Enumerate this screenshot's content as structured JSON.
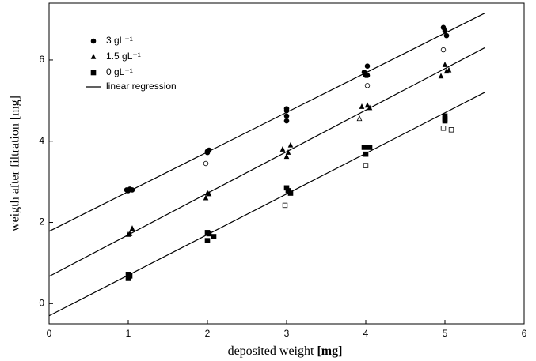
{
  "chart_data": {
    "type": "scatter",
    "xlabel": [
      "deposited weight",
      "[mg]"
    ],
    "ylabel": "weigth after filtration [mg]",
    "xlim": [
      0,
      6
    ],
    "xticks": [
      0,
      1,
      2,
      3,
      4,
      5,
      6
    ],
    "ylim": [
      -0.5,
      7.4
    ],
    "yticks": [
      0,
      2,
      4,
      6
    ],
    "color": "#000000",
    "series": [
      {
        "name": "3 gL⁻¹",
        "marker": "circle",
        "x": [
          0.98,
          1,
          1.02,
          1.05,
          2,
          2,
          2.02,
          3,
          3,
          3,
          3,
          3.98,
          4,
          4.02,
          4.02,
          4.98,
          5,
          5.02
        ],
        "values": [
          2.8,
          2.78,
          2.82,
          2.8,
          3.75,
          3.72,
          3.78,
          4.8,
          4.75,
          4.62,
          4.5,
          5.7,
          5.62,
          5.85,
          5.62,
          6.8,
          6.72,
          6.6
        ],
        "open_x": [
          1.98,
          4.02,
          4.98
        ],
        "open_values": [
          3.45,
          5.37,
          6.25
        ]
      },
      {
        "name": "1.5 gL⁻¹",
        "marker": "triangle",
        "x": [
          1,
          1.02,
          1.05,
          1.98,
          2,
          2.02,
          2.95,
          3,
          3.02,
          3.05,
          3.95,
          4.02,
          4.05,
          4.95,
          5,
          5.02,
          5.05
        ],
        "values": [
          1.7,
          1.72,
          1.85,
          2.6,
          2.72,
          2.7,
          3.8,
          3.62,
          3.72,
          3.9,
          4.85,
          4.88,
          4.82,
          5.6,
          5.88,
          5.72,
          5.75
        ],
        "open_x": [
          3.92
        ],
        "open_values": [
          4.55
        ]
      },
      {
        "name": "0 gL⁻¹",
        "marker": "square",
        "x": [
          1,
          1,
          1.02,
          2,
          2,
          2.02,
          2.08,
          3,
          3.02,
          3.05,
          3.98,
          4,
          4.05,
          5,
          5,
          5
        ],
        "values": [
          0.72,
          0.62,
          0.68,
          1.75,
          1.55,
          1.72,
          1.65,
          2.85,
          2.78,
          2.72,
          3.85,
          3.68,
          3.85,
          4.62,
          4.55,
          4.5
        ],
        "open_x": [
          2.98,
          4,
          4.98,
          5.08
        ],
        "open_values": [
          2.42,
          3.4,
          4.32,
          4.28
        ]
      }
    ],
    "regression_name": "linear regression",
    "regression": [
      {
        "x": [
          0,
          5.5
        ],
        "values": [
          1.78,
          7.15
        ]
      },
      {
        "x": [
          0,
          5.5
        ],
        "values": [
          0.67,
          6.3
        ]
      },
      {
        "x": [
          0,
          5.5
        ],
        "values": [
          -0.3,
          5.2
        ]
      }
    ]
  }
}
